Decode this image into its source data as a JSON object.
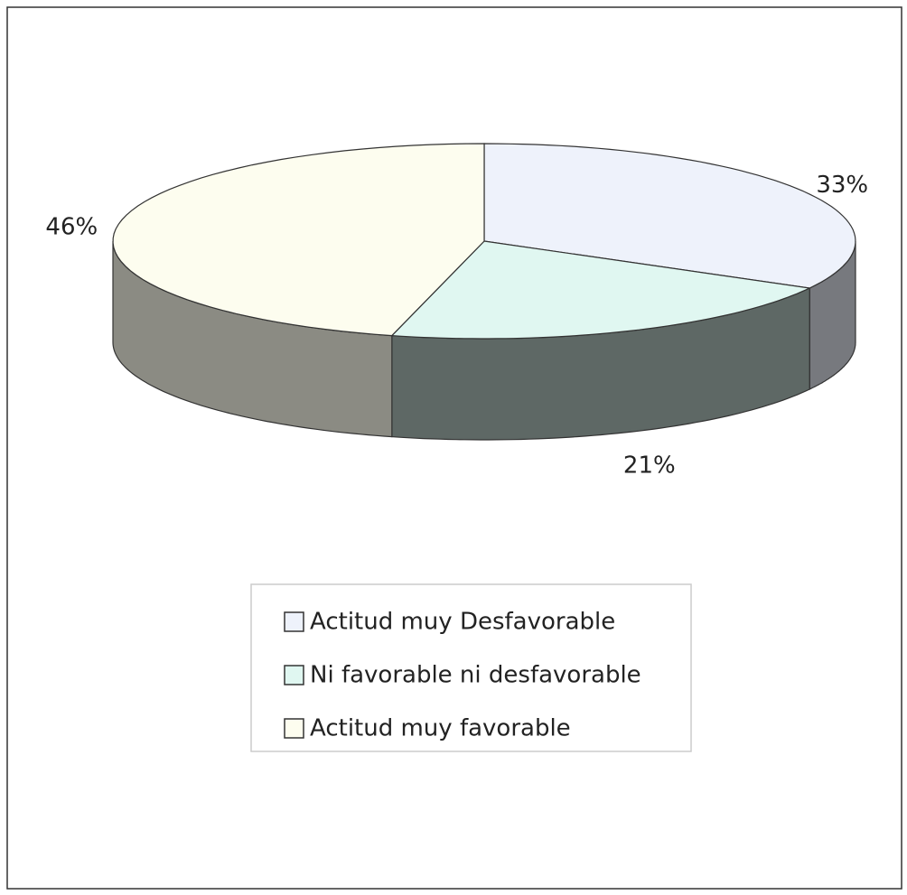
{
  "chart_data": {
    "type": "pie",
    "categories": [
      "Actitud muy Desfavorable",
      "Ni favorable ni desfavorable",
      "Actitud muy favorable"
    ],
    "values": [
      33,
      21,
      46
    ],
    "value_labels": [
      "33%",
      "21%",
      "46%"
    ],
    "colors": [
      "#eef2fb",
      "#e0f7f1",
      "#fdfdef"
    ],
    "legend": "bottom"
  }
}
